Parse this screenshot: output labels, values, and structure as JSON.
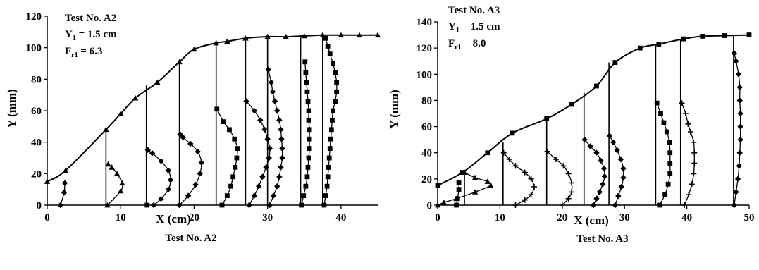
{
  "chart_data": [
    {
      "type": "line",
      "caption": "Test No. A2",
      "xlabel": "X (cm)",
      "ylabel": "Y (mm)",
      "xlim": [
        0,
        45
      ],
      "ylim": [
        0,
        120
      ],
      "xticks": [
        0,
        10,
        20,
        30,
        40
      ],
      "yticks": [
        0,
        20,
        40,
        60,
        80,
        100,
        120
      ],
      "annotation": {
        "line1": "Test No. A2",
        "line2_prefix": "Y",
        "line2_sub": "1",
        "line2_suffix": " = 1.5 cm",
        "line3_prefix": "F",
        "line3_sub": "r1",
        "line3_suffix": " = 6.3"
      },
      "surface": {
        "marker": "triangle",
        "x": [
          0,
          2.5,
          8,
          10,
          12,
          15,
          18,
          20,
          23,
          24.5,
          27,
          30,
          32.5,
          35,
          37.5,
          40,
          42.5,
          45
        ],
        "y": [
          15,
          22,
          48,
          58,
          68,
          78,
          91,
          99,
          103,
          104,
          106,
          107,
          107,
          107.5,
          108,
          108,
          108,
          108
        ]
      },
      "sections": [
        {
          "x0": 2,
          "top": 0,
          "marker": "diamond",
          "points": [
            [
              1.8,
              0
            ],
            [
              2.3,
              8
            ],
            [
              2.4,
              14
            ]
          ]
        },
        {
          "x0": 8,
          "top": 48,
          "marker": "triangle",
          "points": [
            [
              8.2,
              0
            ],
            [
              10,
              9
            ],
            [
              10.2,
              14
            ],
            [
              9.5,
              20
            ],
            [
              8.8,
              24
            ],
            [
              8.3,
              26
            ]
          ]
        },
        {
          "x0": 13.5,
          "top": 76,
          "marker": "square",
          "points": [
            [
              13.6,
              0
            ]
          ]
        },
        {
          "x0": 13.5,
          "top": 0,
          "marker": "diamond",
          "points": [
            [
              14.5,
              0
            ],
            [
              15.5,
              4
            ],
            [
              16.5,
              10
            ],
            [
              16.8,
              16
            ],
            [
              16.5,
              22
            ],
            [
              15.5,
              28
            ],
            [
              14.3,
              33
            ],
            [
              13.7,
              35
            ]
          ]
        },
        {
          "x0": 18,
          "top": 91,
          "marker": "diamond",
          "points": [
            [
              18,
              0
            ],
            [
              19.2,
              6
            ],
            [
              20.2,
              13
            ],
            [
              20.8,
              20
            ],
            [
              21,
              27
            ],
            [
              20.5,
              34
            ],
            [
              19.5,
              39
            ],
            [
              18.5,
              43
            ],
            [
              18.1,
              45
            ]
          ]
        },
        {
          "x0": 23,
          "top": 103,
          "marker": "square",
          "points": [
            [
              23.8,
              0
            ],
            [
              24.5,
              6
            ],
            [
              25,
              12
            ],
            [
              25.3,
              18
            ],
            [
              25.6,
              24
            ],
            [
              25.8,
              30
            ],
            [
              25.9,
              36
            ],
            [
              25.5,
              42
            ],
            [
              24.8,
              48
            ],
            [
              24,
              53
            ],
            [
              23.1,
              61
            ]
          ]
        },
        {
          "x0": 27,
          "top": 106,
          "marker": "diamond",
          "points": [
            [
              27.5,
              0
            ],
            [
              28.2,
              6
            ],
            [
              28.8,
              12
            ],
            [
              29.3,
              18
            ],
            [
              29.8,
              24
            ],
            [
              30.2,
              30
            ],
            [
              30.3,
              36
            ],
            [
              30,
              42
            ],
            [
              29.6,
              48
            ],
            [
              29,
              54
            ],
            [
              28.2,
              60
            ],
            [
              27.1,
              66
            ]
          ]
        },
        {
          "x0": 30,
          "top": 107,
          "marker": "diamond",
          "points": [
            [
              30.3,
              0
            ],
            [
              30.8,
              6
            ],
            [
              31.3,
              12
            ],
            [
              31.6,
              18
            ],
            [
              31.8,
              24
            ],
            [
              32,
              30
            ],
            [
              32,
              36
            ],
            [
              31.9,
              42
            ],
            [
              31.8,
              48
            ],
            [
              31.6,
              54
            ],
            [
              31.3,
              60
            ],
            [
              31,
              66
            ],
            [
              30.7,
              72
            ],
            [
              30.5,
              78
            ],
            [
              30.1,
              86
            ]
          ]
        },
        {
          "x0": 34.5,
          "top": 108,
          "marker": "square",
          "points": [
            [
              34.6,
              0
            ],
            [
              34.9,
              6
            ],
            [
              35.2,
              12
            ],
            [
              35.4,
              18
            ],
            [
              35.5,
              24
            ],
            [
              35.6,
              30
            ],
            [
              35.7,
              36
            ],
            [
              35.7,
              42
            ],
            [
              35.7,
              48
            ],
            [
              35.6,
              54
            ],
            [
              35.6,
              60
            ],
            [
              35.5,
              66
            ],
            [
              35.4,
              72
            ],
            [
              35.3,
              78
            ],
            [
              35.2,
              84
            ],
            [
              35.1,
              91
            ]
          ]
        },
        {
          "x0": 37.5,
          "top": 108,
          "marker": "square",
          "points": [
            [
              37.7,
              0
            ],
            [
              37.9,
              6
            ],
            [
              38.1,
              12
            ],
            [
              38.2,
              18
            ],
            [
              38.3,
              24
            ],
            [
              38.4,
              30
            ],
            [
              38.5,
              36
            ],
            [
              38.6,
              42
            ],
            [
              38.7,
              48
            ],
            [
              38.8,
              54
            ],
            [
              38.9,
              60
            ],
            [
              39.2,
              66
            ],
            [
              39.4,
              72
            ],
            [
              39.4,
              78
            ],
            [
              39.2,
              84
            ],
            [
              38.9,
              90
            ],
            [
              38.5,
              96
            ],
            [
              38.2,
              101
            ],
            [
              37.9,
              106
            ]
          ]
        }
      ]
    },
    {
      "type": "line",
      "caption": "Test No. A3",
      "xlabel": "X (cm)",
      "ylabel": "Y (mm)",
      "xlim": [
        0,
        50
      ],
      "ylim": [
        0,
        140
      ],
      "xticks": [
        0,
        10,
        20,
        30,
        40,
        50
      ],
      "yticks": [
        0,
        20,
        40,
        60,
        80,
        100,
        120,
        140
      ],
      "annotation": {
        "line1": "Test No. A3",
        "line2_prefix": "Y",
        "line2_sub": "1",
        "line2_suffix": " = 1.5 cm",
        "line3_prefix": "F",
        "line3_sub": "r1",
        "line3_suffix": " = 8.0"
      },
      "surface": {
        "marker": "square",
        "x": [
          0,
          4,
          8,
          12,
          17.5,
          21.5,
          25.5,
          28.5,
          32.5,
          35.5,
          39.5,
          42.5,
          46,
          50
        ],
        "y": [
          15,
          25,
          40,
          55,
          66,
          77,
          91,
          109,
          120,
          123,
          127,
          129,
          129.5,
          130
        ]
      },
      "sections": [
        {
          "x0": 3.5,
          "top": 0,
          "marker": "square",
          "points": [
            [
              3,
              0
            ],
            [
              3.2,
              5
            ],
            [
              3.4,
              12
            ],
            [
              3.4,
              17
            ]
          ]
        },
        {
          "x0": 4.3,
          "top": 25,
          "marker": "triangle",
          "points": [
            [
              0,
              0
            ],
            [
              1,
              2
            ],
            [
              3,
              5
            ],
            [
              6,
              10
            ],
            [
              8.5,
              15
            ],
            [
              8,
              18
            ],
            [
              6,
              21
            ],
            [
              4.3,
              25
            ]
          ]
        },
        {
          "x0": 10.5,
          "top": 48,
          "marker": "plus",
          "points": [
            [
              12.5,
              0
            ],
            [
              14,
              4
            ],
            [
              15,
              8
            ],
            [
              15.5,
              14
            ],
            [
              15,
              20
            ],
            [
              14,
              25
            ],
            [
              12.5,
              30
            ],
            [
              11.5,
              35
            ],
            [
              10.6,
              40
            ]
          ]
        },
        {
          "x0": 17.5,
          "top": 66,
          "marker": "plus",
          "points": [
            [
              20,
              0
            ],
            [
              21,
              5
            ],
            [
              21.5,
              10
            ],
            [
              21.5,
              17
            ],
            [
              21,
              24
            ],
            [
              20.2,
              30
            ],
            [
              19,
              35
            ],
            [
              17.6,
              41
            ]
          ]
        },
        {
          "x0": 23.5,
          "top": 86,
          "marker": "diamond",
          "points": [
            [
              25,
              0
            ],
            [
              25.5,
              5
            ],
            [
              26,
              10
            ],
            [
              26.5,
              16
            ],
            [
              26.8,
              22
            ],
            [
              26.7,
              28
            ],
            [
              26.2,
              34
            ],
            [
              25.5,
              40
            ],
            [
              24.5,
              45
            ],
            [
              23.6,
              50
            ]
          ]
        },
        {
          "x0": 27.5,
          "top": 109,
          "marker": "diamond",
          "points": [
            [
              28.5,
              0
            ],
            [
              29,
              7
            ],
            [
              29.5,
              14
            ],
            [
              29.8,
              21
            ],
            [
              29.8,
              28
            ],
            [
              29.4,
              35
            ],
            [
              28.8,
              42
            ],
            [
              28.2,
              48
            ],
            [
              27.6,
              53
            ]
          ]
        },
        {
          "x0": 35,
          "top": 123,
          "marker": "square",
          "points": [
            [
              35.6,
              0
            ],
            [
              36.5,
              8
            ],
            [
              37,
              16
            ],
            [
              37.3,
              24
            ],
            [
              37.3,
              32
            ],
            [
              37.3,
              40
            ],
            [
              37.2,
              48
            ],
            [
              36.8,
              56
            ],
            [
              36.3,
              63
            ],
            [
              35.8,
              70
            ],
            [
              35.2,
              78
            ]
          ]
        },
        {
          "x0": 39,
          "top": 127,
          "marker": "plus",
          "points": [
            [
              39.6,
              0
            ],
            [
              40.3,
              8
            ],
            [
              40.8,
              16
            ],
            [
              41.1,
              24
            ],
            [
              41.2,
              32
            ],
            [
              41.2,
              40
            ],
            [
              41.1,
              48
            ],
            [
              40.6,
              56
            ],
            [
              40.2,
              62
            ],
            [
              39.8,
              70
            ],
            [
              39.2,
              78
            ]
          ]
        },
        {
          "x0": 47.5,
          "top": 130,
          "marker": "diamond",
          "points": [
            [
              47.6,
              0
            ],
            [
              47.9,
              10
            ],
            [
              48.2,
              20
            ],
            [
              48.4,
              30
            ],
            [
              48.5,
              40
            ],
            [
              48.6,
              50
            ],
            [
              48.6,
              60
            ],
            [
              48.6,
              70
            ],
            [
              48.5,
              80
            ],
            [
              48.5,
              90
            ],
            [
              48.3,
              100
            ],
            [
              47.9,
              110
            ],
            [
              47.6,
              116
            ]
          ]
        }
      ]
    }
  ]
}
